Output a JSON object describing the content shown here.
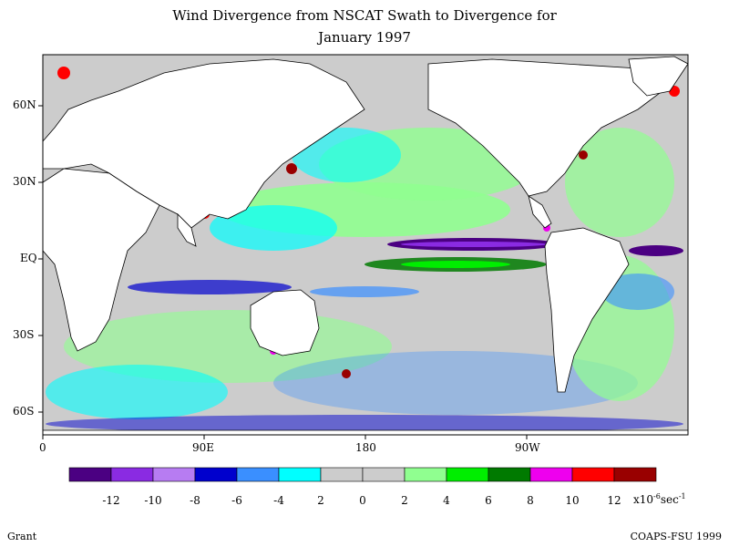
{
  "title_line1": "Wind Divergence from NSCAT Swath to Divergence for",
  "title_line2": "January 1997",
  "y_axis_labels": [
    "60N",
    "30N",
    "EQ",
    "30S",
    "60S"
  ],
  "x_axis_labels": [
    "0",
    "90E",
    "180",
    "90W"
  ],
  "legend": {
    "colors": [
      "#4b0082",
      "#8a2be2",
      "#b77cf2",
      "#0000cd",
      "#3a8fff",
      "#00ffff",
      "#cccccc",
      "#cccccc",
      "#90ff90",
      "#00ee00",
      "#007a00",
      "#ee00ee",
      "#ff0000",
      "#990000"
    ],
    "labels": [
      "-12",
      "-10",
      "-8",
      "-6",
      "-4",
      "2",
      "0",
      "2",
      "4",
      "6",
      "8",
      "10",
      "12"
    ],
    "units_base": "x10",
    "units_exp": "-6",
    "units_tail": "sec",
    "units_tail_exp": "-1"
  },
  "footer_left": "Grant",
  "footer_right": "COAPS-FSU 1999"
}
